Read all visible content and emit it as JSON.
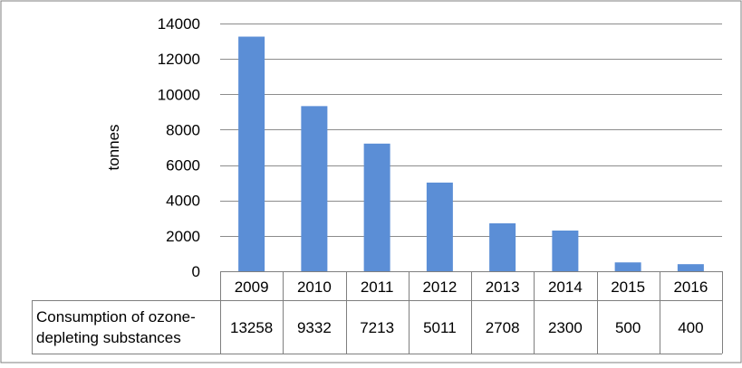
{
  "chart_data": {
    "type": "bar",
    "title": "",
    "xlabel": "",
    "ylabel": "tonnes",
    "ylim": [
      0,
      14000
    ],
    "yticks": [
      0,
      2000,
      4000,
      6000,
      8000,
      10000,
      12000,
      14000
    ],
    "grid": true,
    "legend": "none",
    "categories": [
      "2009",
      "2010",
      "2011",
      "2012",
      "2013",
      "2014",
      "2015",
      "2016"
    ],
    "series": [
      {
        "name": "Consumption of ozone-depleting substances",
        "values": [
          13258,
          9332,
          7213,
          5011,
          2708,
          2300,
          500,
          400
        ]
      }
    ],
    "table": {
      "row_label_lines": [
        "Consumption of ozone-",
        "depleting substances"
      ],
      "values": [
        "13258",
        "9332",
        "7213",
        "5011",
        "2708",
        "2300",
        "500",
        "400"
      ]
    },
    "colors": {
      "bar": "#5b8ed6",
      "grid": "#8c8c8c",
      "border": "#7f7f7f",
      "text": "#000000"
    }
  }
}
